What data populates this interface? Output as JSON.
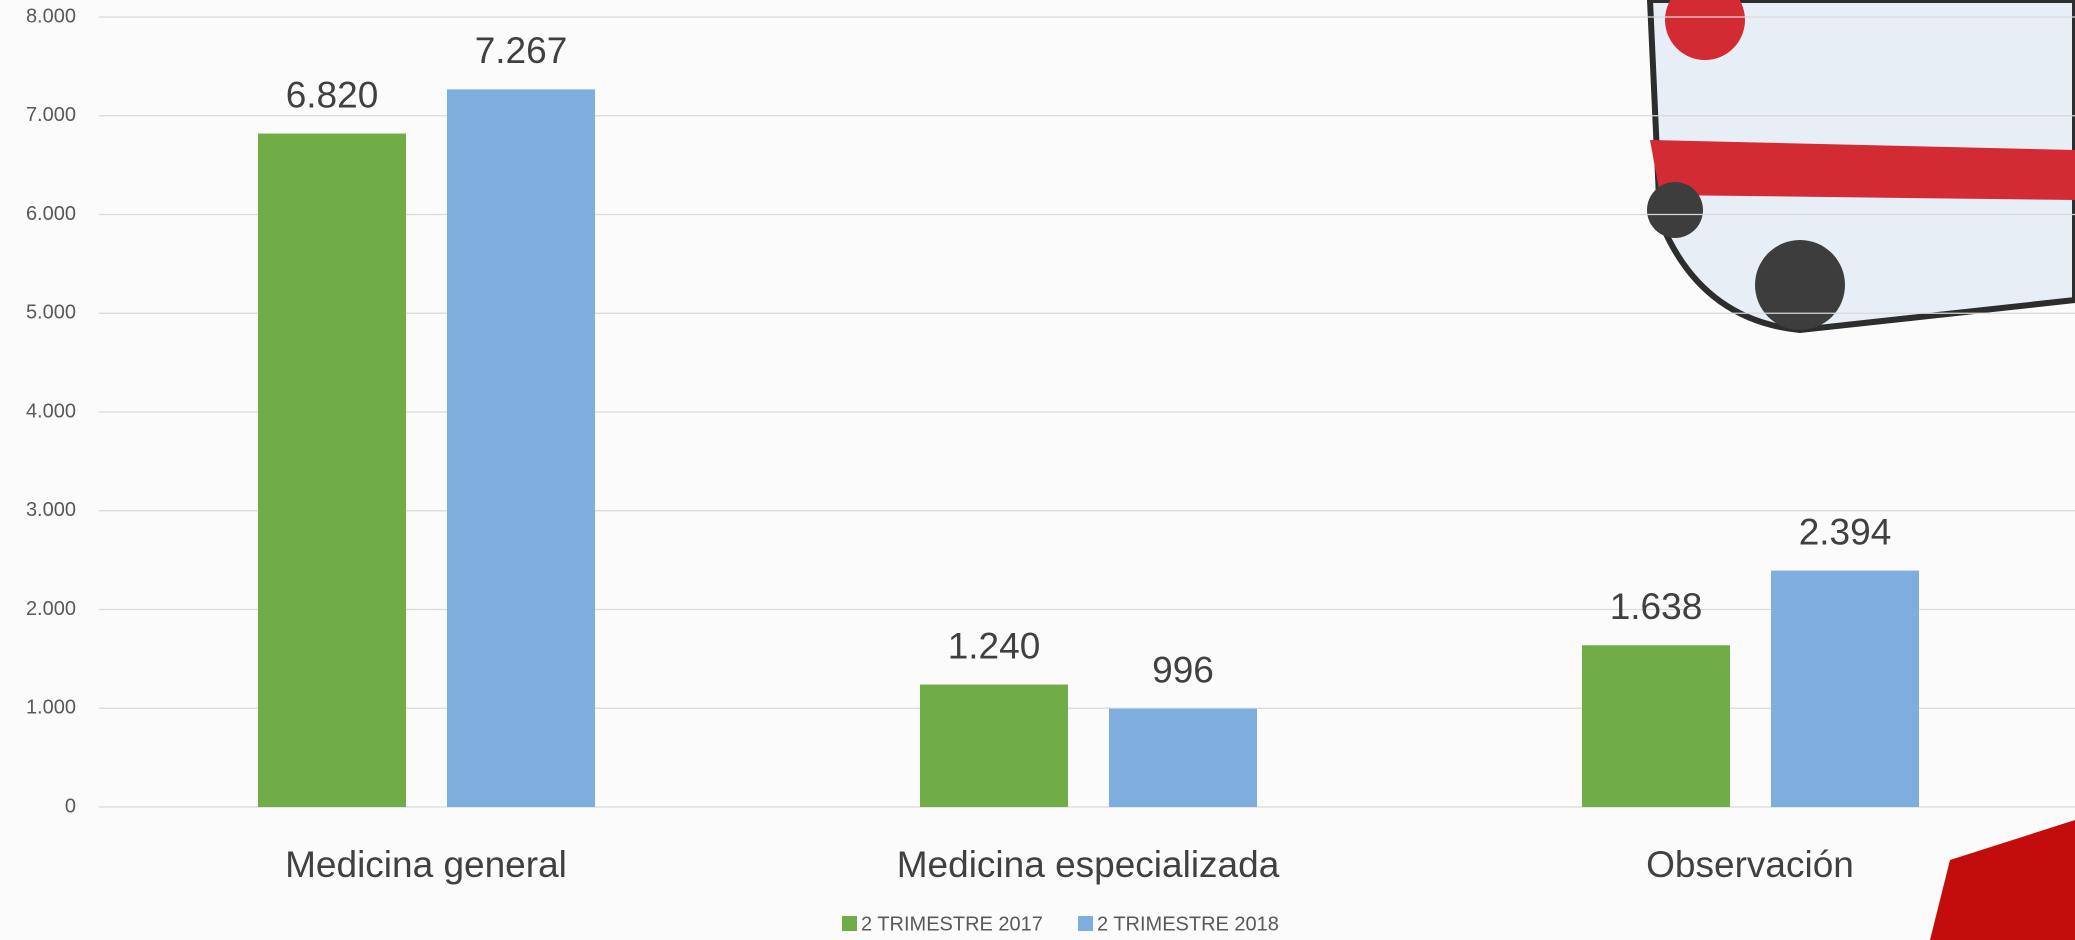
{
  "chart_data": {
    "type": "bar",
    "categories": [
      "Medicina general",
      "Medicina especializada",
      "Observación"
    ],
    "series": [
      {
        "name": "2 TRIMESTRE 2017",
        "color": "#70ad47",
        "values": [
          6820,
          1240,
          1638
        ],
        "value_labels": [
          "6.820",
          "1.240",
          "1.638"
        ]
      },
      {
        "name": "2 TRIMESTRE 2018",
        "color": "#7eaedd",
        "values": [
          7267,
          996,
          2394
        ],
        "value_labels": [
          "7.267",
          "996",
          "2.394"
        ]
      }
    ],
    "ylim": [
      0,
      8000
    ],
    "yticks": [
      0,
      {
        "value": 1000,
        "label": "1.000"
      },
      {
        "value": 2000,
        "label": "2.000"
      },
      {
        "value": 3000,
        "label": "3.000"
      },
      {
        "value": 4000,
        "label": "4.000"
      },
      {
        "value": 5000,
        "label": "5.000"
      },
      {
        "value": 6000,
        "label": "6.000"
      },
      {
        "value": 7000,
        "label": "7.000"
      },
      {
        "value": 8000,
        "label": "8.000"
      }
    ],
    "grid": true,
    "legend": "bottom"
  }
}
